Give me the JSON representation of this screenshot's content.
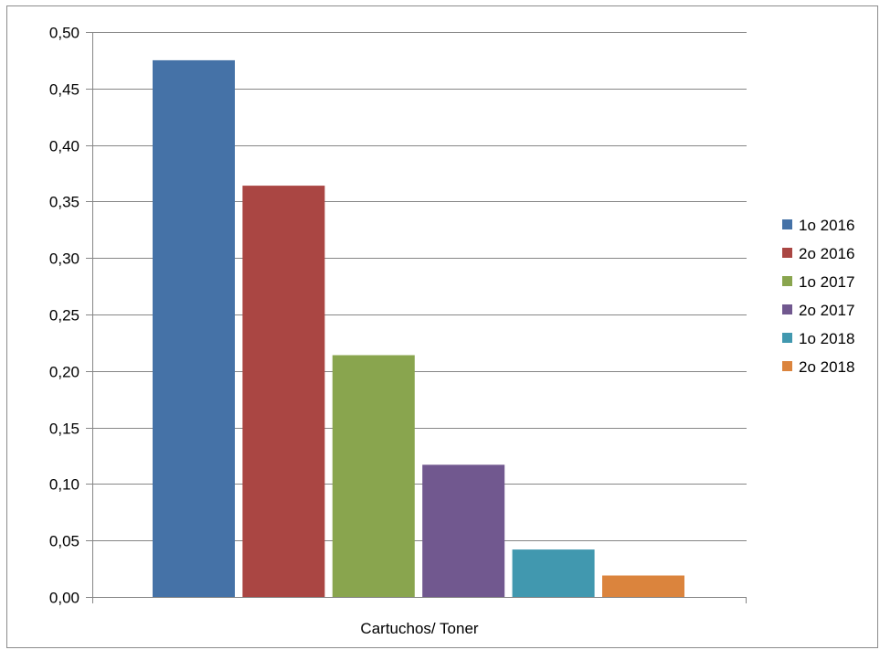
{
  "chart_data": {
    "type": "bar",
    "categories": [
      "Cartuchos/ Toner"
    ],
    "series": [
      {
        "name": "1o 2016",
        "values": [
          0.475
        ],
        "color": "#4572A7"
      },
      {
        "name": "2o 2016",
        "values": [
          0.364
        ],
        "color": "#AA4643"
      },
      {
        "name": "1o 2017",
        "values": [
          0.214
        ],
        "color": "#89A54E"
      },
      {
        "name": "2o 2017",
        "values": [
          0.117
        ],
        "color": "#71588F"
      },
      {
        "name": "1o 2018",
        "values": [
          0.042
        ],
        "color": "#4198AF"
      },
      {
        "name": "2o 2018",
        "values": [
          0.019
        ],
        "color": "#DB843D"
      }
    ],
    "title": "",
    "xlabel": "",
    "ylabel": "",
    "ylim": [
      0,
      0.5
    ],
    "yticks": [
      "0,00",
      "0,05",
      "0,10",
      "0,15",
      "0,20",
      "0,25",
      "0,30",
      "0,35",
      "0,40",
      "0,45",
      "0,50"
    ],
    "grid": true,
    "legend_position": "right"
  }
}
